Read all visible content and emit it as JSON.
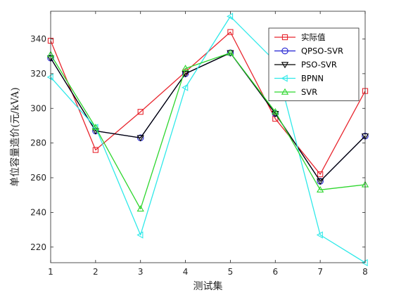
{
  "chart_data": {
    "type": "line",
    "xlabel": "测试集",
    "ylabel": "单位容量造价(元/kVA)",
    "x": [
      1,
      2,
      3,
      4,
      5,
      6,
      7,
      8
    ],
    "xlim": [
      1,
      8
    ],
    "ylim": [
      211,
      356
    ],
    "xticks": [
      1,
      2,
      3,
      4,
      5,
      6,
      7,
      8
    ],
    "yticks": [
      220,
      240,
      260,
      280,
      300,
      320,
      340
    ],
    "grid": false,
    "legend_position": "top-right",
    "series": [
      {
        "name": "实际值",
        "color": "#e8262e",
        "marker": "square",
        "values": [
          339,
          276,
          298,
          321,
          344,
          294,
          262,
          310
        ]
      },
      {
        "name": "QPSO-SVR",
        "color": "#1f1fd1",
        "marker": "circle",
        "values": [
          329,
          287,
          283,
          320,
          332,
          297,
          258,
          284
        ]
      },
      {
        "name": "PSO-SVR",
        "color": "#000000",
        "marker": "triangle-down",
        "values": [
          329,
          287,
          283,
          320,
          332,
          297,
          258,
          284
        ]
      },
      {
        "name": "BPNN",
        "color": "#2fe9e9",
        "marker": "triangle-left",
        "values": [
          318,
          289,
          227,
          312,
          353,
          327,
          227,
          211
        ]
      },
      {
        "name": "SVR",
        "color": "#2dd62d",
        "marker": "triangle-up",
        "values": [
          331,
          289,
          242,
          323,
          332,
          298,
          253,
          256
        ]
      }
    ]
  }
}
